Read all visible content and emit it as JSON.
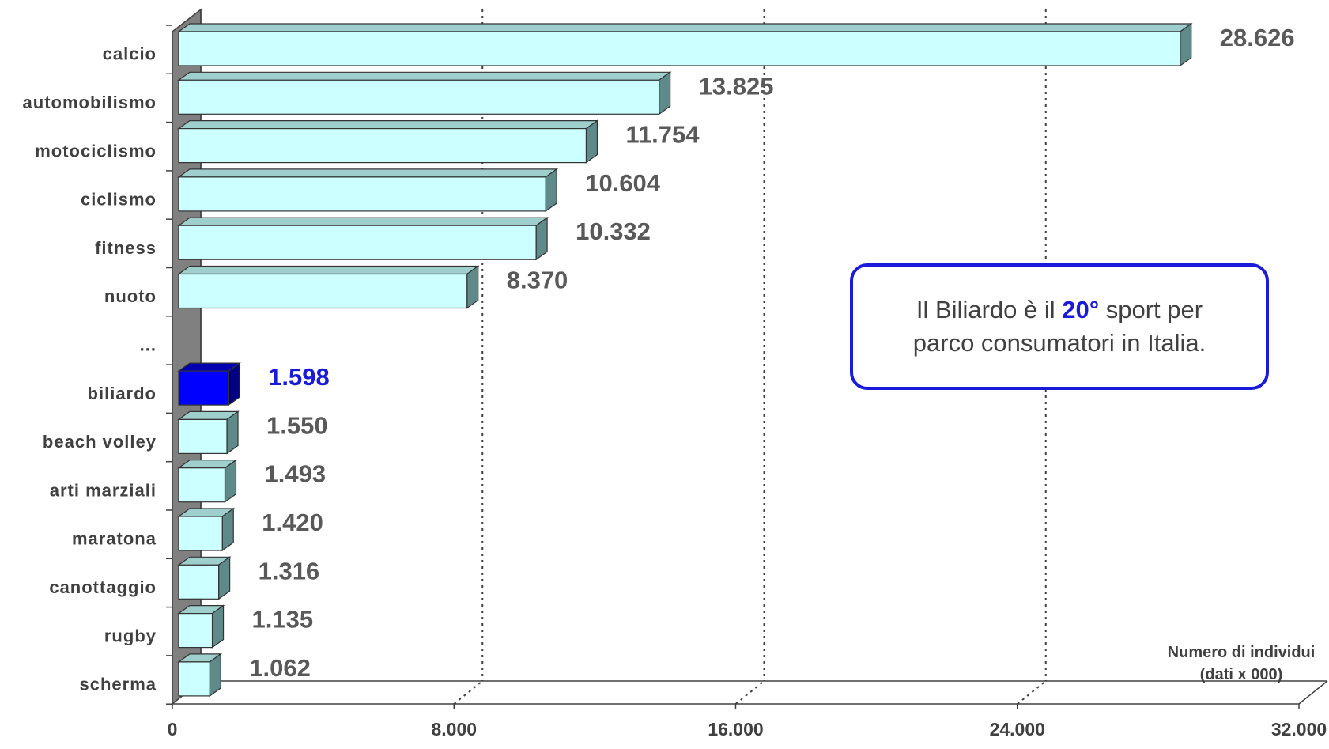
{
  "chart_data": {
    "type": "bar",
    "orientation": "horizontal",
    "style": "3d",
    "categories": [
      "calcio",
      "automobilismo",
      "motociclismo",
      "ciclismo",
      "fitness",
      "nuoto",
      "...",
      "biliardo",
      "beach volley",
      "arti marziali",
      "maratona",
      "canottaggio",
      "rugby",
      "scherma"
    ],
    "values": [
      28626,
      13825,
      11754,
      10604,
      10332,
      8370,
      null,
      1598,
      1550,
      1493,
      1420,
      1316,
      1135,
      1062
    ],
    "value_labels": [
      "28.626",
      "13.825",
      "11.754",
      "10.604",
      "10.332",
      "8.370",
      "",
      "1.598",
      "1.550",
      "1.493",
      "1.420",
      "1.316",
      "1.135",
      "1.062"
    ],
    "highlight_category": "biliardo",
    "xlim": [
      0,
      32000
    ],
    "x_ticks": [
      0,
      8000,
      16000,
      24000,
      32000
    ],
    "x_tick_labels": [
      "0",
      "8.000",
      "16.000",
      "24.000",
      "32.000"
    ],
    "axis_title_lines": [
      "Numero di individui",
      "(dati x 000)"
    ],
    "grid": "vertical dotted",
    "colors": {
      "bar_front": "#ccffff",
      "bar_top": "#9ecfcc",
      "bar_side": "#5f8a8a",
      "highlight_front": "#0000ff",
      "highlight_top": "#0000b0",
      "highlight_side": "#000080",
      "highlight_text": "#1a1adb",
      "wall": "#808080"
    }
  },
  "callout": {
    "line1_pre": "Il Biliardo è il ",
    "line1_highlight": "20°",
    "line1_post": " sport per",
    "line2": "parco consumatori in Italia."
  }
}
